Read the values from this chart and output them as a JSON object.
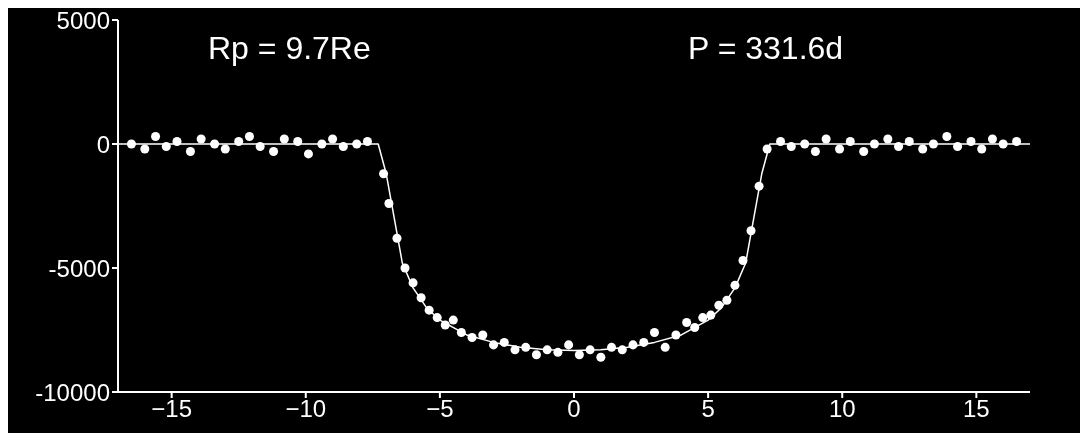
{
  "chart_data": {
    "type": "scatter",
    "annotations": [
      "Rp = 9.7Re",
      "P = 331.6d"
    ],
    "xlim": [
      -17,
      17
    ],
    "xticks": [
      -15,
      -10,
      -5,
      0,
      5,
      10,
      15
    ],
    "ylim": [
      -10000,
      5000
    ],
    "yticks": [
      5000,
      0,
      -5000,
      -10000
    ],
    "grid": false,
    "legend": false,
    "series": [
      {
        "type": "scatter",
        "marker": "circle",
        "color": "#ffffff",
        "x": [
          -16.5,
          -16,
          -15.6,
          -15.2,
          -14.8,
          -14.3,
          -13.9,
          -13.4,
          -13,
          -12.5,
          -12.1,
          -11.7,
          -11.2,
          -10.8,
          -10.3,
          -9.9,
          -9.4,
          -9,
          -8.6,
          -8.1,
          -7.7,
          -7.1,
          -6.9,
          -6.6,
          -6.3,
          -6,
          -5.7,
          -5.4,
          -5.1,
          -4.8,
          -4.5,
          -4.2,
          -3.8,
          -3.4,
          -3,
          -2.6,
          -2.2,
          -1.8,
          -1.4,
          -1,
          -0.6,
          -0.2,
          0.2,
          0.6,
          1,
          1.4,
          1.8,
          2.2,
          2.6,
          3,
          3.4,
          3.8,
          4.2,
          4.5,
          4.8,
          5.1,
          5.4,
          5.7,
          6,
          6.3,
          6.6,
          6.9,
          7.2,
          7.7,
          8.1,
          8.6,
          9,
          9.4,
          9.9,
          10.3,
          10.8,
          11.2,
          11.7,
          12.1,
          12.5,
          13,
          13.4,
          13.9,
          14.3,
          14.8,
          15.2,
          15.6,
          16,
          16.5
        ],
        "values": [
          0,
          -200,
          300,
          -100,
          100,
          -300,
          200,
          0,
          -200,
          100,
          300,
          -100,
          -300,
          200,
          100,
          -400,
          0,
          200,
          -100,
          0,
          100,
          -1200,
          -2400,
          -3800,
          -5000,
          -5600,
          -6200,
          -6700,
          -7000,
          -7300,
          -7100,
          -7600,
          -7800,
          -7700,
          -8100,
          -8000,
          -8300,
          -8200,
          -8500,
          -8300,
          -8400,
          -8100,
          -8500,
          -8300,
          -8600,
          -8200,
          -8300,
          -8100,
          -8000,
          -7600,
          -8200,
          -7700,
          -7200,
          -7400,
          -7000,
          -6900,
          -6500,
          -6300,
          -5700,
          -4700,
          -3500,
          -1700,
          -200,
          100,
          -100,
          0,
          -300,
          200,
          -200,
          100,
          -300,
          0,
          200,
          -100,
          100,
          -200,
          0,
          300,
          -100,
          100,
          -200,
          200,
          0,
          100
        ]
      },
      {
        "type": "line",
        "marker": "none",
        "line_style": "solid",
        "color": "#ffffff",
        "x": [
          -17,
          -7.3,
          -7,
          -6.7,
          -6.4,
          -6,
          -5.5,
          -5,
          -4,
          -3,
          -2,
          -1,
          0,
          1,
          2,
          3,
          4,
          5,
          5.5,
          6,
          6.4,
          6.7,
          7,
          7.3,
          17
        ],
        "values": [
          0,
          0,
          -1200,
          -3000,
          -4800,
          -5800,
          -6600,
          -7100,
          -7700,
          -8000,
          -8200,
          -8300,
          -8330,
          -8300,
          -8200,
          -8000,
          -7700,
          -7100,
          -6600,
          -5800,
          -4800,
          -3000,
          -1200,
          0,
          0
        ]
      }
    ]
  }
}
